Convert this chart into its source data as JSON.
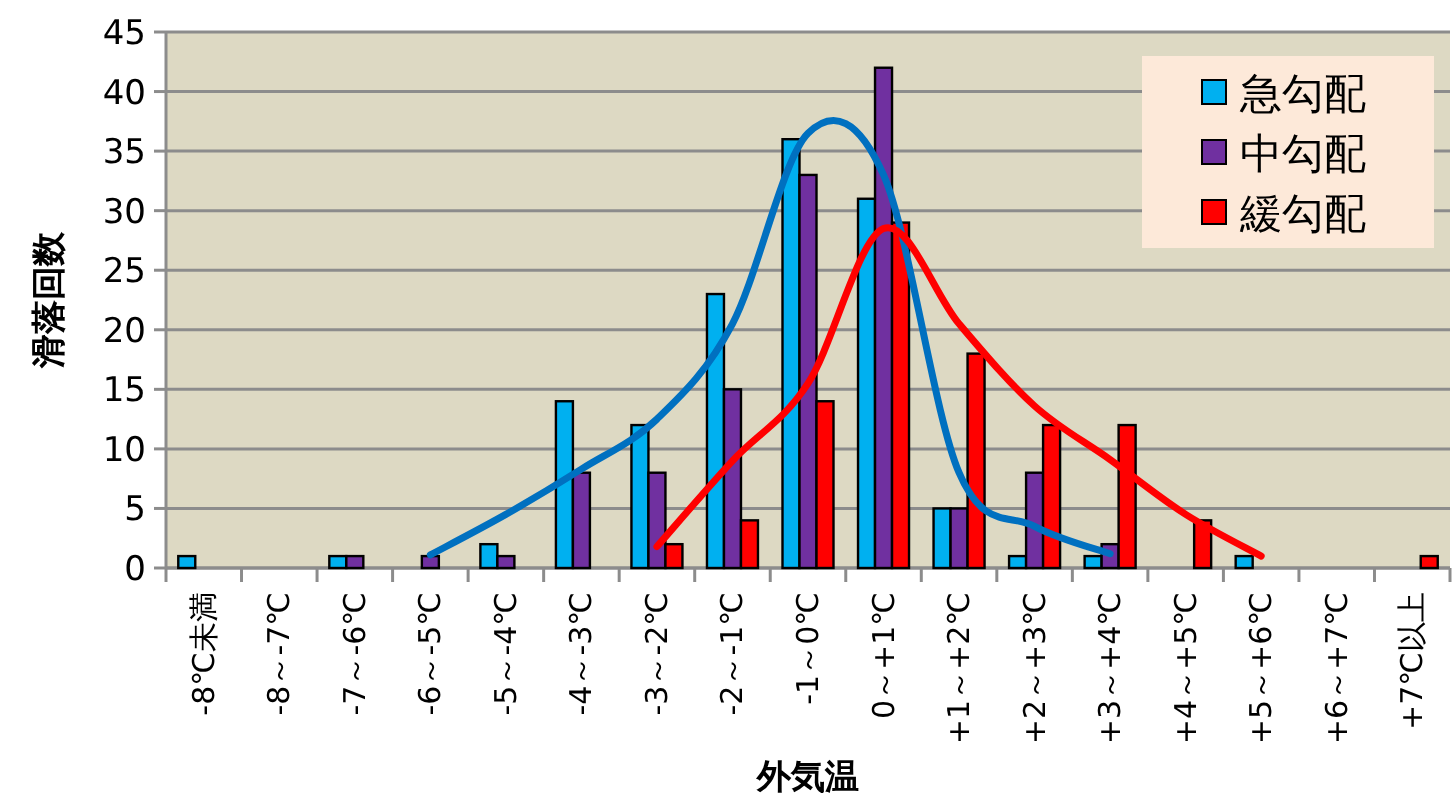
{
  "chart_data": {
    "type": "bar",
    "xlabel": "外気温",
    "ylabel": "滑落回数",
    "categories": [
      "-8℃未満",
      "-8～-7℃",
      "-7～-6℃",
      "-6～-5℃",
      "-5～-4℃",
      "-4～-3℃",
      "-3～-2℃",
      "-2～-1℃",
      "-1～0℃",
      "0～+1℃",
      "+1～+2℃",
      "+2～+3℃",
      "+3～+4℃",
      "+4～+5℃",
      "+5～+6℃",
      "+6～+7℃",
      "+7℃以上"
    ],
    "series": [
      {
        "name": "急勾配",
        "color": "#00b0f0",
        "values": [
          1,
          0,
          1,
          0,
          2,
          14,
          12,
          23,
          36,
          31,
          5,
          1,
          1,
          0,
          1,
          0,
          0
        ]
      },
      {
        "name": "中勾配",
        "color": "#7030a0",
        "values": [
          0,
          0,
          1,
          1,
          1,
          8,
          8,
          15,
          33,
          42,
          5,
          8,
          2,
          0,
          0,
          0,
          0
        ]
      },
      {
        "name": "緩勾配",
        "color": "#ff0000",
        "values": [
          0,
          0,
          0,
          0,
          0,
          0,
          2,
          4,
          14,
          29,
          18,
          12,
          12,
          4,
          0,
          0,
          1
        ]
      },
      {
        "type": "line",
        "color": "#0070c0",
        "values": [
          null,
          null,
          null,
          1.1,
          4.5,
          8.3,
          12.5,
          20.5,
          36.5,
          33,
          8,
          3.5,
          1.2,
          null,
          null,
          null,
          null
        ]
      },
      {
        "type": "line",
        "color": "#ff0000",
        "values": [
          null,
          null,
          null,
          null,
          null,
          null,
          1.8,
          9,
          15.5,
          28.5,
          20.5,
          13.6,
          9.1,
          4.5,
          1,
          null,
          null
        ]
      }
    ],
    "ylim": [
      0,
      45
    ],
    "yticks": [
      0,
      5,
      10,
      15,
      20,
      25,
      30,
      35,
      40,
      45
    ],
    "grid": "y",
    "legend": "top right"
  }
}
